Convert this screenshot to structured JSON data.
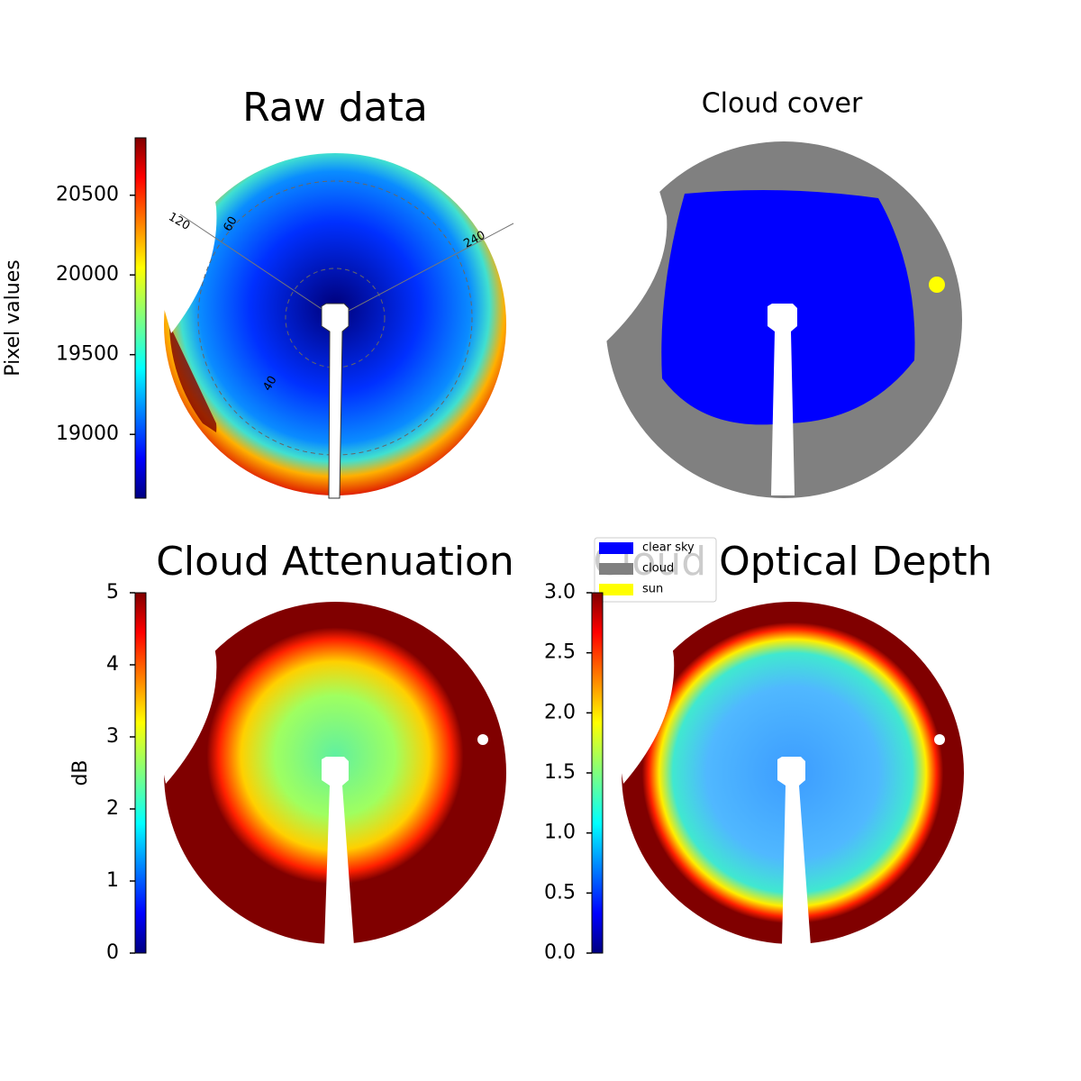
{
  "chart_data": [
    {
      "type": "heatmap",
      "title": "Raw data",
      "colorbar": {
        "label": "Pixel values",
        "colormap": "jet",
        "lim": [
          18600,
          20860
        ],
        "ticks": [
          19000,
          19500,
          20000,
          20500
        ]
      },
      "annotations": [
        "120",
        "60",
        "240",
        "40"
      ]
    },
    {
      "type": "image",
      "title": "Cloud cover",
      "legend": [
        {
          "name": "clear sky",
          "color": "#0000ff"
        },
        {
          "name": "cloud",
          "color": "#808080"
        },
        {
          "name": "sun",
          "color": "#ffff00"
        }
      ]
    },
    {
      "type": "heatmap",
      "title": "Cloud Attenuation",
      "colorbar": {
        "label": "dB",
        "colormap": "jet",
        "lim": [
          0,
          5
        ],
        "ticks": [
          0,
          1,
          2,
          3,
          4,
          5
        ]
      }
    },
    {
      "type": "heatmap",
      "title": "Cloud Optical Depth",
      "colorbar": {
        "colormap": "jet",
        "lim": [
          0,
          3
        ],
        "ticks": [
          {
            "value": 0,
            "label": "0.0"
          },
          {
            "value": 0.5,
            "label": "0.5"
          },
          {
            "value": 1,
            "label": "1.0"
          },
          {
            "value": 1.5,
            "label": "1.5"
          },
          {
            "value": 2,
            "label": "2.0"
          },
          {
            "value": 2.5,
            "label": "2.5"
          },
          {
            "value": 3,
            "label": "3.0"
          }
        ]
      }
    }
  ]
}
